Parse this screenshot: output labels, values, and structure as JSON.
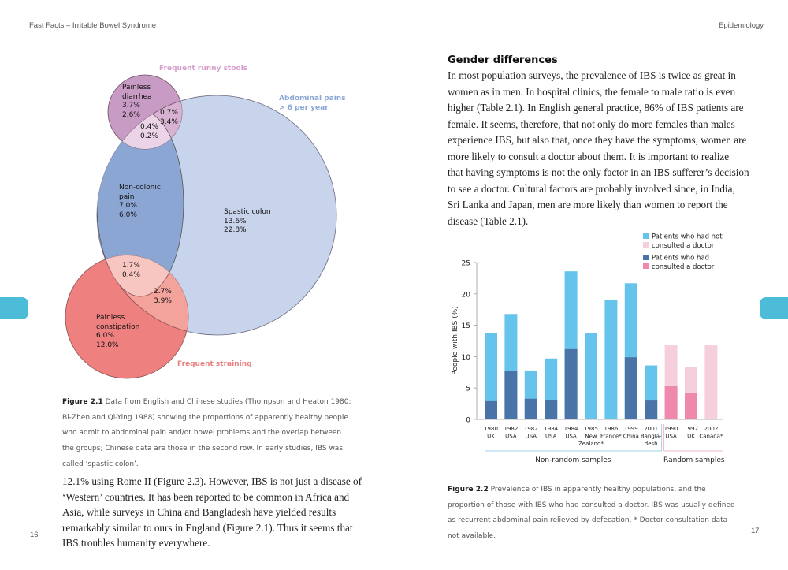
{
  "header": {
    "left": "Fast Facts – Irritable Bowel Syndrome",
    "right": "Epidemiology"
  },
  "page_numbers": {
    "left": "16",
    "right": "17"
  },
  "colors": {
    "tab": "#4cbcd8",
    "not_consulted_nonrandom": "#66c3ec",
    "consulted_nonrandom": "#4a74a8",
    "not_consulted_random": "#f6cfdc",
    "consulted_random": "#ef88ad"
  },
  "venn": {
    "runny_stools": "Frequent runny stools",
    "abdominal_pains": [
      "Abdominal pains",
      "> 6 per year"
    ],
    "straining": "Frequent straining",
    "painless_diarrhea": [
      "Painless",
      "diarrhea",
      "3.7%",
      "2.6%"
    ],
    "diarrhea_pain": [
      "0.7%",
      "3.4%"
    ],
    "diarrhea_noncolonic": [
      "0.4%",
      "0.2%"
    ],
    "non_colonic_pain": [
      "Non-colonic",
      "pain",
      "7.0%",
      "6.0%"
    ],
    "spastic_colon": [
      "Spastic colon",
      "13.6%",
      "22.8%"
    ],
    "constipation_noncolonic": [
      "1.7%",
      "0.4%"
    ],
    "constipation_pain": [
      "2.7%",
      "3.9%"
    ],
    "painless_constipation": [
      "Painless",
      "constipation",
      "6.0%",
      "12.0%"
    ]
  },
  "figure1_caption": {
    "label": "Figure 2.1",
    "lines": [
      " Data from English and Chinese studies (Thompson and Heaton 1980;",
      "Bi-Zhen and Qi-Ying 1988) showing the proportions of apparently healthy people",
      "who admit to abdominal pain and/or bowel problems and the overlap between",
      "the groups; Chinese data are those in the second row. In early studies, IBS was",
      "called ‘spastic colon’."
    ]
  },
  "left_body": [
    "12.1% using Rome II (Figure 2.3). However, IBS is not just a disease of",
    "‘Western’ countries. It has been reported to be common in Africa and",
    "Asia, while surveys in China and Bangladesh have yielded results",
    "remarkably similar to ours in England (Figure 2.1). Thus it seems that",
    "IBS troubles humanity everywhere."
  ],
  "section": {
    "heading": "Gender differences",
    "lines": [
      "In most population surveys, the prevalence of IBS is twice as great in",
      "women as in men. In hospital clinics, the female to male ratio is even",
      "higher (Table 2.1). In English general practice, 86% of IBS patients are",
      "female. It seems, therefore, that not only do more females than males",
      "experience IBS, but also that, once they have the symptoms, women are",
      "more likely to consult a doctor about them. It is important to realize",
      "that having symptoms is not the only factor in an IBS sufferer’s decision",
      "to see a doctor. Cultural factors are probably involved since, in India,",
      "Sri Lanka and Japan, men are more likely than women to report the",
      "disease (Table 2.1)."
    ]
  },
  "figure2_caption": {
    "label": "Figure 2.2",
    "lines": [
      " Prevalence of IBS in apparently healthy populations, and the",
      "proportion of those with IBS who had consulted a doctor. IBS was usually defined",
      "as recurrent abdominal pain relieved by defecation. * Doctor consultation data",
      "not available."
    ]
  },
  "chart_data": {
    "type": "bar",
    "stacked": true,
    "ylabel": "People with IBS (%)",
    "ylim": [
      0,
      25
    ],
    "yticks": [
      0,
      5,
      10,
      15,
      20,
      25
    ],
    "legend": [
      [
        "Patients who had not",
        "consulted a doctor"
      ],
      [
        "Patients who had",
        "consulted a doctor"
      ]
    ],
    "legend_position": "top-right",
    "groups": [
      {
        "label": "Non-random samples",
        "count": 9
      },
      {
        "label": "Random samples",
        "count": 3
      }
    ],
    "categories": [
      [
        "1980",
        "UK"
      ],
      [
        "1982",
        "USA"
      ],
      [
        "1982",
        "USA"
      ],
      [
        "1984",
        "USA"
      ],
      [
        "1984",
        "USA"
      ],
      [
        "1985",
        "New",
        "Zealand*"
      ],
      [
        "1986",
        "France*"
      ],
      [
        "1999",
        "China"
      ],
      [
        "2001",
        "Bangla-",
        "desh"
      ],
      [
        "1990",
        "USA"
      ],
      [
        "1992",
        "UK"
      ],
      [
        "2002",
        "Canada*"
      ]
    ],
    "total": [
      13.8,
      16.8,
      7.8,
      9.7,
      23.6,
      13.8,
      19.0,
      21.7,
      8.6,
      11.8,
      8.3,
      11.8
    ],
    "consulted": [
      2.9,
      7.7,
      3.3,
      3.1,
      11.2,
      null,
      null,
      9.9,
      3.0,
      5.4,
      4.2,
      null
    ]
  }
}
